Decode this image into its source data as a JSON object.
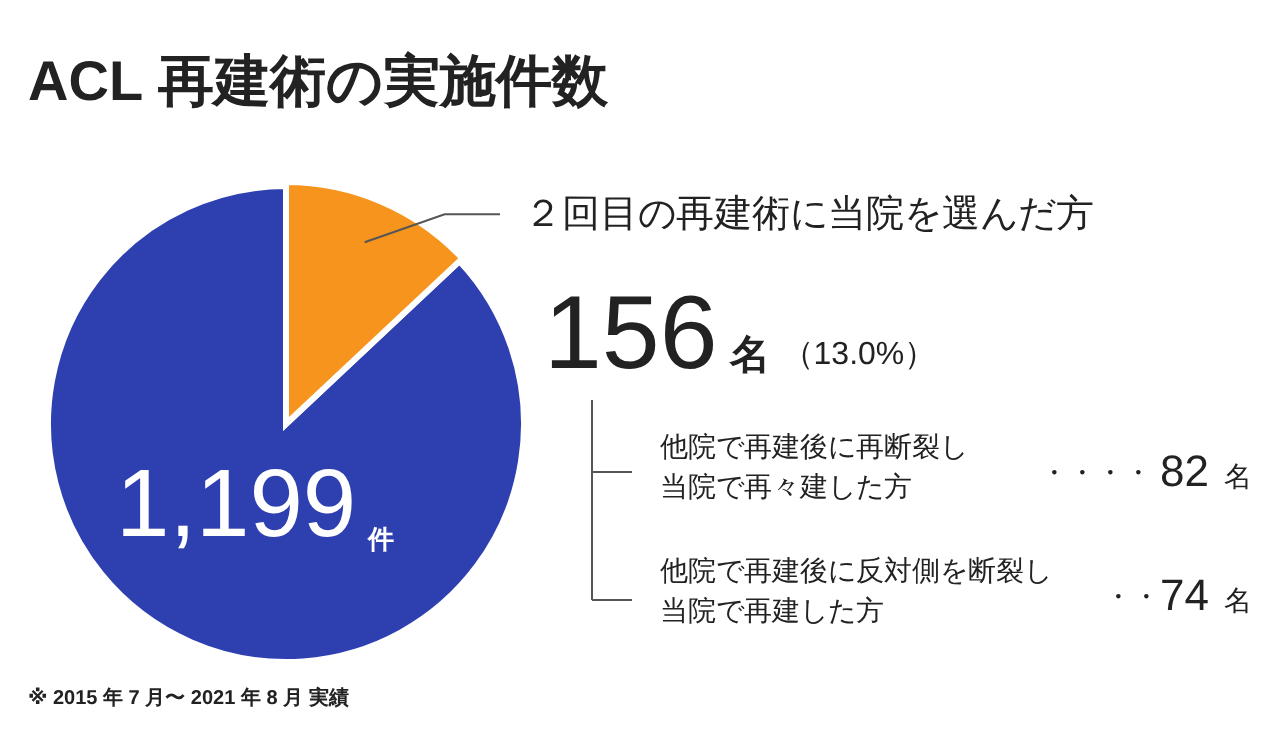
{
  "chart_data": {
    "type": "pie",
    "title": "ACL 再建術の実施件数",
    "categories": [
      null,
      "２回目の再建術に当院を選んだ方"
    ],
    "values": [
      87.0,
      13.0
    ],
    "colors": [
      "#2e3fb0",
      "#f7941d"
    ],
    "annotations": [
      "1,199",
      "件",
      "156",
      "名",
      "（13.0%）",
      "他院で再建後に再断裂し",
      "当院で再々建した方",
      "・・・・",
      "82",
      "名",
      "他院で再建後に反対側を断裂し",
      "当院で再建した方",
      "・・",
      "74",
      "名",
      "※ 2015 年 7 月〜 2021 年 8 月 実績"
    ]
  }
}
